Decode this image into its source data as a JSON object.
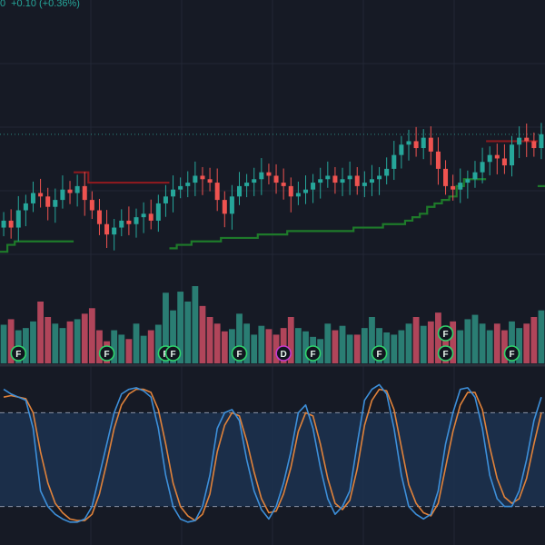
{
  "header": {
    "last_digit": "0",
    "change": "+0.10 (+0.36%)"
  },
  "colors": {
    "background": "#161a25",
    "grid": "#222735",
    "up": "#26a69a",
    "down": "#ef5350",
    "volume_up": "#2a7d73",
    "volume_down": "#b0455a",
    "trail_long": "#1e7a2a",
    "trail_short": "#8b1a1f",
    "stoch_k": "#3d8fd9",
    "stoch_d": "#e0823a",
    "band_fill": "#1c3350",
    "band_line": "#8a93a6",
    "marker_green": "#2fd46b",
    "marker_purple": "#c43ad0"
  },
  "markers": [
    {
      "label": "F",
      "color": "green",
      "bar": 2
    },
    {
      "label": "F",
      "color": "green",
      "bar": 14
    },
    {
      "label": "F",
      "color": "green",
      "bar": 22
    },
    {
      "label": "F",
      "color": "green",
      "bar": 23
    },
    {
      "label": "F",
      "color": "green",
      "bar": 32
    },
    {
      "label": "D",
      "color": "purple",
      "bar": 38
    },
    {
      "label": "F",
      "color": "green",
      "bar": 42
    },
    {
      "label": "F",
      "color": "green",
      "bar": 51
    },
    {
      "label": "F",
      "color": "green",
      "bar": 60
    },
    {
      "label": "F",
      "color": "green",
      "bar": 60
    },
    {
      "label": "F",
      "color": "green",
      "bar": 69
    }
  ],
  "chart_data": {
    "type": "candlestick",
    "bars": 74,
    "series": {
      "close": [
        27.6,
        27.4,
        27.9,
        28.1,
        28.4,
        28.3,
        28.0,
        28.2,
        28.5,
        28.4,
        28.6,
        28.2,
        27.9,
        27.5,
        27.2,
        27.4,
        27.6,
        27.5,
        27.7,
        27.8,
        27.6,
        28.1,
        28.3,
        28.5,
        28.6,
        28.7,
        28.9,
        28.8,
        28.7,
        28.2,
        27.8,
        28.3,
        28.6,
        28.7,
        28.8,
        29.0,
        28.9,
        28.7,
        28.6,
        28.3,
        28.4,
        28.5,
        28.7,
        28.8,
        28.9,
        28.7,
        28.8,
        28.9,
        28.6,
        28.7,
        28.8,
        28.9,
        29.1,
        29.5,
        29.8,
        29.9,
        29.7,
        30.0,
        29.6,
        29.1,
        28.6,
        28.5,
        28.7,
        28.8,
        29.0,
        29.3,
        29.5,
        29.4,
        29.2,
        29.8,
        30.0,
        29.9,
        29.7,
        30.1
      ],
      "volume": [
        3.5,
        4.0,
        3.0,
        3.2,
        3.8,
        5.6,
        4.2,
        3.6,
        3.2,
        3.8,
        4.0,
        4.5,
        5.0,
        3.0,
        2.0,
        3.0,
        2.6,
        2.2,
        3.6,
        2.5,
        3.0,
        3.5,
        6.4,
        4.8,
        6.5,
        5.6,
        7.0,
        5.2,
        4.2,
        3.6,
        2.9,
        3.1,
        4.5,
        3.6,
        2.6,
        3.4,
        3.1,
        2.6,
        3.2,
        4.2,
        3.2,
        2.9,
        2.4,
        2.2,
        3.6,
        3.0,
        3.4,
        2.6,
        2.6,
        3.2,
        4.2,
        3.2,
        2.8,
        2.6,
        3.0,
        3.6,
        4.2,
        3.4,
        3.8,
        4.6,
        3.4,
        3.8,
        3.0,
        4.0,
        4.4,
        3.6,
        3.0,
        3.6,
        3.0,
        3.8,
        3.2,
        3.6,
        4.2,
        4.8
      ],
      "trailing_stop": [
        26.7,
        26.9,
        27.0,
        27.0,
        27.0,
        27.0,
        27.0,
        27.0,
        27.0,
        27.0,
        29.0,
        29.0,
        28.7,
        28.7,
        28.7,
        28.7,
        28.7,
        28.7,
        28.7,
        28.7,
        28.7,
        28.7,
        28.7,
        26.8,
        26.9,
        26.9,
        27.0,
        27.0,
        27.0,
        27.0,
        27.1,
        27.1,
        27.1,
        27.1,
        27.1,
        27.2,
        27.2,
        27.2,
        27.2,
        27.3,
        27.3,
        27.3,
        27.3,
        27.3,
        27.3,
        27.3,
        27.3,
        27.3,
        27.4,
        27.4,
        27.4,
        27.4,
        27.5,
        27.5,
        27.5,
        27.6,
        27.7,
        27.8,
        28.0,
        28.1,
        28.2,
        28.3,
        28.6,
        28.8,
        28.8,
        28.8,
        29.9,
        29.9,
        29.9,
        29.9,
        29.9,
        29.9,
        29.9,
        28.6
      ],
      "trailing_side": [
        "long",
        "long",
        "long",
        "long",
        "long",
        "long",
        "long",
        "long",
        "long",
        "long",
        "short",
        "short",
        "short",
        "short",
        "short",
        "short",
        "short",
        "short",
        "short",
        "short",
        "short",
        "short",
        "short",
        "long",
        "long",
        "long",
        "long",
        "long",
        "long",
        "long",
        "long",
        "long",
        "long",
        "long",
        "long",
        "long",
        "long",
        "long",
        "long",
        "long",
        "long",
        "long",
        "long",
        "long",
        "long",
        "long",
        "long",
        "long",
        "long",
        "long",
        "long",
        "long",
        "long",
        "long",
        "long",
        "long",
        "long",
        "long",
        "long",
        "long",
        "long",
        "long",
        "long",
        "long",
        "long",
        "long",
        "short",
        "short",
        "short",
        "short",
        "short",
        "short",
        "short",
        "long"
      ],
      "stoch_k": [
        95,
        92,
        90,
        88,
        70,
        30,
        20,
        15,
        12,
        10,
        10,
        12,
        20,
        40,
        60,
        80,
        92,
        95,
        96,
        94,
        90,
        70,
        40,
        20,
        12,
        10,
        11,
        20,
        40,
        70,
        80,
        82,
        75,
        50,
        30,
        18,
        12,
        20,
        35,
        55,
        80,
        85,
        70,
        45,
        25,
        15,
        20,
        30,
        60,
        88,
        95,
        98,
        92,
        70,
        40,
        20,
        15,
        12,
        15,
        30,
        60,
        80,
        95,
        96,
        90,
        70,
        40,
        25,
        20,
        20,
        30,
        50,
        75,
        90
      ],
      "stoch_d": [
        90,
        91,
        90,
        89,
        80,
        55,
        35,
        22,
        16,
        12,
        11,
        11,
        15,
        28,
        48,
        70,
        85,
        92,
        95,
        95,
        93,
        82,
        60,
        35,
        20,
        14,
        11,
        15,
        28,
        55,
        72,
        80,
        78,
        62,
        42,
        25,
        16,
        17,
        28,
        45,
        68,
        80,
        78,
        60,
        38,
        22,
        18,
        24,
        44,
        72,
        88,
        95,
        94,
        82,
        58,
        34,
        22,
        16,
        14,
        22,
        45,
        68,
        85,
        93,
        93,
        82,
        58,
        38,
        26,
        22,
        25,
        38,
        60,
        80
      ]
    },
    "stoch_band": [
      20,
      80
    ],
    "stoch_range": [
      0,
      100
    ]
  }
}
